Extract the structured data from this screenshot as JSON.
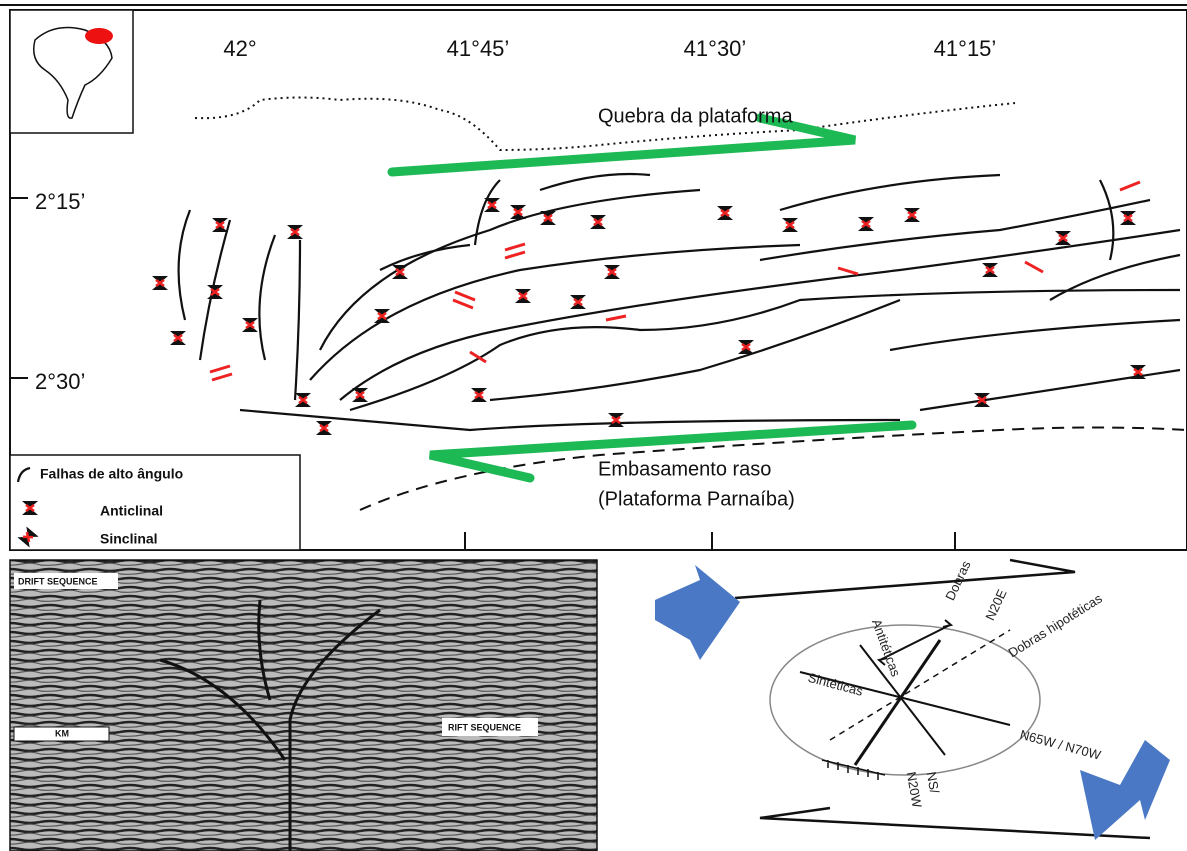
{
  "map": {
    "longitude_labels": [
      "42°",
      "41°45’",
      "41°30’",
      "41°15’"
    ],
    "latitude_labels": [
      "2°15’",
      "2°30’"
    ],
    "annotations": {
      "shelf_break": "Quebra da plataforma",
      "shallow_basement": "Embasamento raso",
      "platform": "(Plataforma Parnaíba)"
    },
    "legend": [
      "Falhas de alto ângulo",
      "Anticlinal",
      "Sinclinal"
    ]
  },
  "seismic": {
    "labels": [
      "DRIFT SEQUENCE",
      "RIFT SEQUENCE",
      "KM"
    ]
  },
  "strain_ellipse": {
    "labels": [
      "Dobras",
      "N20E",
      "Dobras hipotéticas",
      "Antitéticas",
      "Sintéticas",
      "N65W / N70W",
      "NS/",
      "N20W"
    ]
  }
}
